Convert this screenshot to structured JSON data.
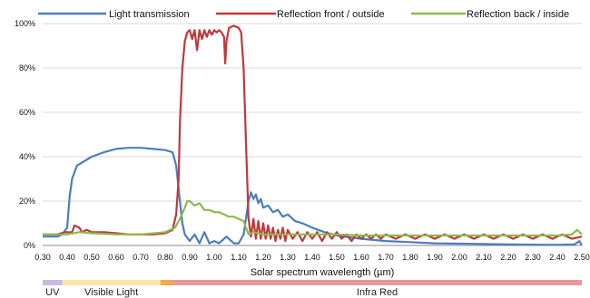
{
  "chart_data": {
    "type": "line",
    "xlabel": "Solar spectrum wavelength (µm)",
    "ylabel": "",
    "xlim": [
      0.3,
      2.5
    ],
    "ylim": [
      0,
      100
    ],
    "x_ticks": [
      "0.30",
      "0.40",
      "0.50",
      "0.60",
      "0.70",
      "0.80",
      "0.90",
      "1.00",
      "1.10",
      "1.20",
      "1.30",
      "1.40",
      "1.50",
      "1.60",
      "1.70",
      "1.80",
      "1.90",
      "2.00",
      "2.10",
      "2.20",
      "2.30",
      "2.40",
      "2.50"
    ],
    "y_ticks": [
      "0%",
      "20%",
      "40%",
      "60%",
      "80%",
      "100%"
    ],
    "grid": "horizontal",
    "legend_position": "top",
    "series": [
      {
        "name": "Light transmission",
        "color": "#4a7ebf",
        "points": [
          [
            0.3,
            4
          ],
          [
            0.36,
            4
          ],
          [
            0.38,
            5
          ],
          [
            0.4,
            8
          ],
          [
            0.41,
            22
          ],
          [
            0.42,
            30
          ],
          [
            0.44,
            36
          ],
          [
            0.47,
            38
          ],
          [
            0.5,
            40
          ],
          [
            0.55,
            42
          ],
          [
            0.6,
            43.5
          ],
          [
            0.65,
            44
          ],
          [
            0.7,
            44
          ],
          [
            0.75,
            43.5
          ],
          [
            0.8,
            43
          ],
          [
            0.83,
            42
          ],
          [
            0.845,
            36
          ],
          [
            0.86,
            20
          ],
          [
            0.87,
            10
          ],
          [
            0.88,
            5
          ],
          [
            0.9,
            2
          ],
          [
            0.92,
            5
          ],
          [
            0.94,
            1
          ],
          [
            0.96,
            6
          ],
          [
            0.98,
            1
          ],
          [
            1.0,
            2
          ],
          [
            1.02,
            1
          ],
          [
            1.05,
            4
          ],
          [
            1.08,
            1
          ],
          [
            1.1,
            1
          ],
          [
            1.12,
            5
          ],
          [
            1.14,
            20
          ],
          [
            1.15,
            24
          ],
          [
            1.16,
            21
          ],
          [
            1.17,
            23
          ],
          [
            1.18,
            19
          ],
          [
            1.19,
            21
          ],
          [
            1.2,
            17
          ],
          [
            1.22,
            18
          ],
          [
            1.24,
            15
          ],
          [
            1.26,
            16
          ],
          [
            1.28,
            13
          ],
          [
            1.3,
            14
          ],
          [
            1.33,
            11
          ],
          [
            1.36,
            10
          ],
          [
            1.4,
            8
          ],
          [
            1.45,
            6
          ],
          [
            1.5,
            4.5
          ],
          [
            1.6,
            3
          ],
          [
            1.7,
            2
          ],
          [
            1.8,
            1.5
          ],
          [
            1.9,
            1
          ],
          [
            2.0,
            0.8
          ],
          [
            2.2,
            0.5
          ],
          [
            2.4,
            0.3
          ],
          [
            2.47,
            0.5
          ],
          [
            2.49,
            2
          ],
          [
            2.5,
            0
          ]
        ]
      },
      {
        "name": "Reflection front / outside",
        "color": "#c0393b",
        "points": [
          [
            0.3,
            5
          ],
          [
            0.36,
            5
          ],
          [
            0.39,
            6
          ],
          [
            0.42,
            6
          ],
          [
            0.43,
            9
          ],
          [
            0.45,
            8
          ],
          [
            0.46,
            6
          ],
          [
            0.48,
            7
          ],
          [
            0.5,
            6
          ],
          [
            0.55,
            6
          ],
          [
            0.6,
            5.5
          ],
          [
            0.65,
            5
          ],
          [
            0.7,
            5
          ],
          [
            0.75,
            5
          ],
          [
            0.8,
            5.5
          ],
          [
            0.83,
            7
          ],
          [
            0.845,
            14
          ],
          [
            0.855,
            30
          ],
          [
            0.86,
            55
          ],
          [
            0.87,
            80
          ],
          [
            0.88,
            92
          ],
          [
            0.89,
            96
          ],
          [
            0.9,
            97
          ],
          [
            0.91,
            93
          ],
          [
            0.92,
            97
          ],
          [
            0.93,
            88
          ],
          [
            0.94,
            97
          ],
          [
            0.95,
            93
          ],
          [
            0.96,
            97
          ],
          [
            0.97,
            94
          ],
          [
            0.98,
            97
          ],
          [
            0.99,
            95
          ],
          [
            1.0,
            97
          ],
          [
            1.01,
            96
          ],
          [
            1.02,
            97
          ],
          [
            1.03,
            96
          ],
          [
            1.04,
            94
          ],
          [
            1.045,
            82
          ],
          [
            1.05,
            92
          ],
          [
            1.06,
            98
          ],
          [
            1.08,
            99
          ],
          [
            1.1,
            98
          ],
          [
            1.11,
            96
          ],
          [
            1.12,
            80
          ],
          [
            1.13,
            45
          ],
          [
            1.14,
            12
          ],
          [
            1.15,
            4
          ],
          [
            1.16,
            12
          ],
          [
            1.17,
            3
          ],
          [
            1.18,
            11
          ],
          [
            1.19,
            3
          ],
          [
            1.2,
            10
          ],
          [
            1.21,
            3
          ],
          [
            1.22,
            9
          ],
          [
            1.23,
            3
          ],
          [
            1.24,
            8
          ],
          [
            1.25,
            2
          ],
          [
            1.26,
            7
          ],
          [
            1.27,
            3
          ],
          [
            1.28,
            8
          ],
          [
            1.29,
            2
          ],
          [
            1.3,
            7
          ],
          [
            1.32,
            3
          ],
          [
            1.34,
            6
          ],
          [
            1.36,
            2
          ],
          [
            1.38,
            6
          ],
          [
            1.4,
            3
          ],
          [
            1.42,
            6
          ],
          [
            1.44,
            2
          ],
          [
            1.46,
            6
          ],
          [
            1.48,
            3
          ],
          [
            1.5,
            6
          ],
          [
            1.52,
            3
          ],
          [
            1.54,
            5
          ],
          [
            1.56,
            2
          ],
          [
            1.58,
            5
          ],
          [
            1.6,
            3
          ],
          [
            1.62,
            5
          ],
          [
            1.64,
            3
          ],
          [
            1.66,
            5
          ],
          [
            1.68,
            3
          ],
          [
            1.7,
            5
          ],
          [
            1.74,
            3
          ],
          [
            1.78,
            5
          ],
          [
            1.82,
            3
          ],
          [
            1.86,
            5
          ],
          [
            1.9,
            3
          ],
          [
            1.94,
            5
          ],
          [
            1.98,
            3
          ],
          [
            2.02,
            5
          ],
          [
            2.06,
            3
          ],
          [
            2.1,
            5
          ],
          [
            2.14,
            3
          ],
          [
            2.18,
            5
          ],
          [
            2.22,
            3
          ],
          [
            2.26,
            5
          ],
          [
            2.3,
            3
          ],
          [
            2.34,
            5
          ],
          [
            2.38,
            3
          ],
          [
            2.42,
            5
          ],
          [
            2.46,
            3
          ],
          [
            2.5,
            4
          ]
        ]
      },
      {
        "name": "Reflection back / inside",
        "color": "#8fb94b",
        "points": [
          [
            0.3,
            5
          ],
          [
            0.36,
            5
          ],
          [
            0.4,
            5
          ],
          [
            0.45,
            6
          ],
          [
            0.5,
            5.5
          ],
          [
            0.6,
            5
          ],
          [
            0.7,
            5
          ],
          [
            0.8,
            6
          ],
          [
            0.84,
            8
          ],
          [
            0.86,
            12
          ],
          [
            0.88,
            17
          ],
          [
            0.89,
            20
          ],
          [
            0.9,
            20
          ],
          [
            0.92,
            18
          ],
          [
            0.94,
            19
          ],
          [
            0.96,
            16
          ],
          [
            0.98,
            16
          ],
          [
            1.0,
            15
          ],
          [
            1.02,
            15
          ],
          [
            1.04,
            14
          ],
          [
            1.06,
            13
          ],
          [
            1.08,
            13
          ],
          [
            1.1,
            12
          ],
          [
            1.12,
            11
          ],
          [
            1.13,
            8
          ],
          [
            1.14,
            5
          ],
          [
            1.16,
            6
          ],
          [
            1.2,
            5
          ],
          [
            1.3,
            5
          ],
          [
            1.4,
            5
          ],
          [
            1.5,
            5
          ],
          [
            1.6,
            4.5
          ],
          [
            1.8,
            4.5
          ],
          [
            2.0,
            4.5
          ],
          [
            2.2,
            4.5
          ],
          [
            2.4,
            4.5
          ],
          [
            2.46,
            5
          ],
          [
            2.48,
            7
          ],
          [
            2.5,
            5
          ]
        ]
      }
    ]
  },
  "spectrum_bands": [
    {
      "label": "UV",
      "range": [
        0.3,
        0.38
      ],
      "color": "#c9b8e2"
    },
    {
      "label": "Visible Light",
      "range": [
        0.38,
        0.78
      ],
      "color": "#fbe6a6"
    },
    {
      "label": "",
      "range": [
        0.78,
        0.83
      ],
      "color": "#f3a94e"
    },
    {
      "label": "Infra Red",
      "range": [
        0.83,
        2.5
      ],
      "color": "#e8999b"
    }
  ]
}
